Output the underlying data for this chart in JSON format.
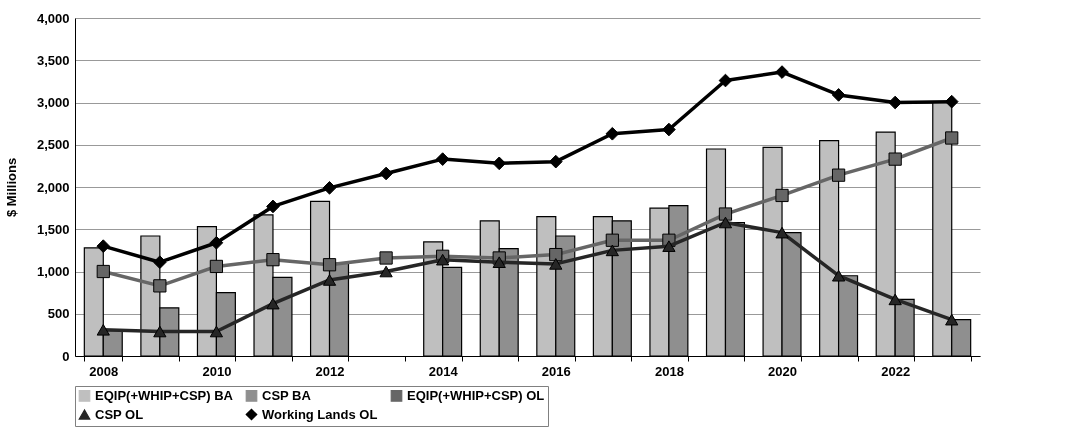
{
  "chart_data": {
    "type": "bar",
    "ylabel": "$ Millions",
    "categories": [
      "2008",
      null,
      "2010",
      null,
      "2012",
      null,
      "2014",
      null,
      "2016",
      null,
      "2018",
      null,
      "2020",
      null,
      "2022",
      null
    ],
    "series": [
      {
        "name": "EQIP(+WHIP+CSP) BA",
        "color": "#bfbfbf",
        "values": [
          1280,
          1420,
          1530,
          1670,
          1830,
          null,
          1350,
          1600,
          1650,
          1650,
          1750,
          2450,
          2470,
          2550,
          2650,
          3000
        ]
      },
      {
        "name": "CSP BA",
        "color": "#8f8f8f",
        "values": [
          300,
          570,
          750,
          930,
          1100,
          null,
          1050,
          1270,
          1420,
          1600,
          1780,
          1580,
          1460,
          950,
          670,
          430
        ]
      },
      {
        "name": "EQIP(+WHIP+CSP) OL",
        "type": "line",
        "marker": "square",
        "color": "#666666",
        "values": [
          1000,
          830,
          1060,
          1140,
          1080,
          1160,
          1180,
          1160,
          1200,
          1370,
          1370,
          1680,
          1900,
          2140,
          2330,
          2580
        ]
      },
      {
        "name": "CSP OL",
        "type": "line",
        "marker": "triangle",
        "color": "#262626",
        "values": [
          310,
          290,
          290,
          620,
          900,
          1000,
          1140,
          1110,
          1090,
          1250,
          1300,
          1580,
          1460,
          950,
          670,
          430
        ]
      },
      {
        "name": "Working Lands OL",
        "type": "line",
        "marker": "diamond",
        "color": "#000000",
        "values": [
          1300,
          1110,
          1340,
          1770,
          1990,
          2160,
          2330,
          2280,
          2300,
          2630,
          2680,
          3260,
          3360,
          3090,
          3000,
          3010
        ]
      }
    ],
    "ylim": [
      0,
      4000
    ],
    "yticks": [
      0,
      500,
      {
        "value": 1000,
        "label": "1,000"
      },
      {
        "value": 1500,
        "label": "1,500"
      },
      {
        "value": 2000,
        "label": "2,000"
      },
      {
        "value": 2500,
        "label": "2,500"
      },
      {
        "value": 3000,
        "label": "3,000"
      },
      {
        "value": 3500,
        "label": "3,500"
      },
      {
        "value": 4000,
        "label": "4,000"
      }
    ],
    "grid": "y",
    "legend": "bottom"
  }
}
